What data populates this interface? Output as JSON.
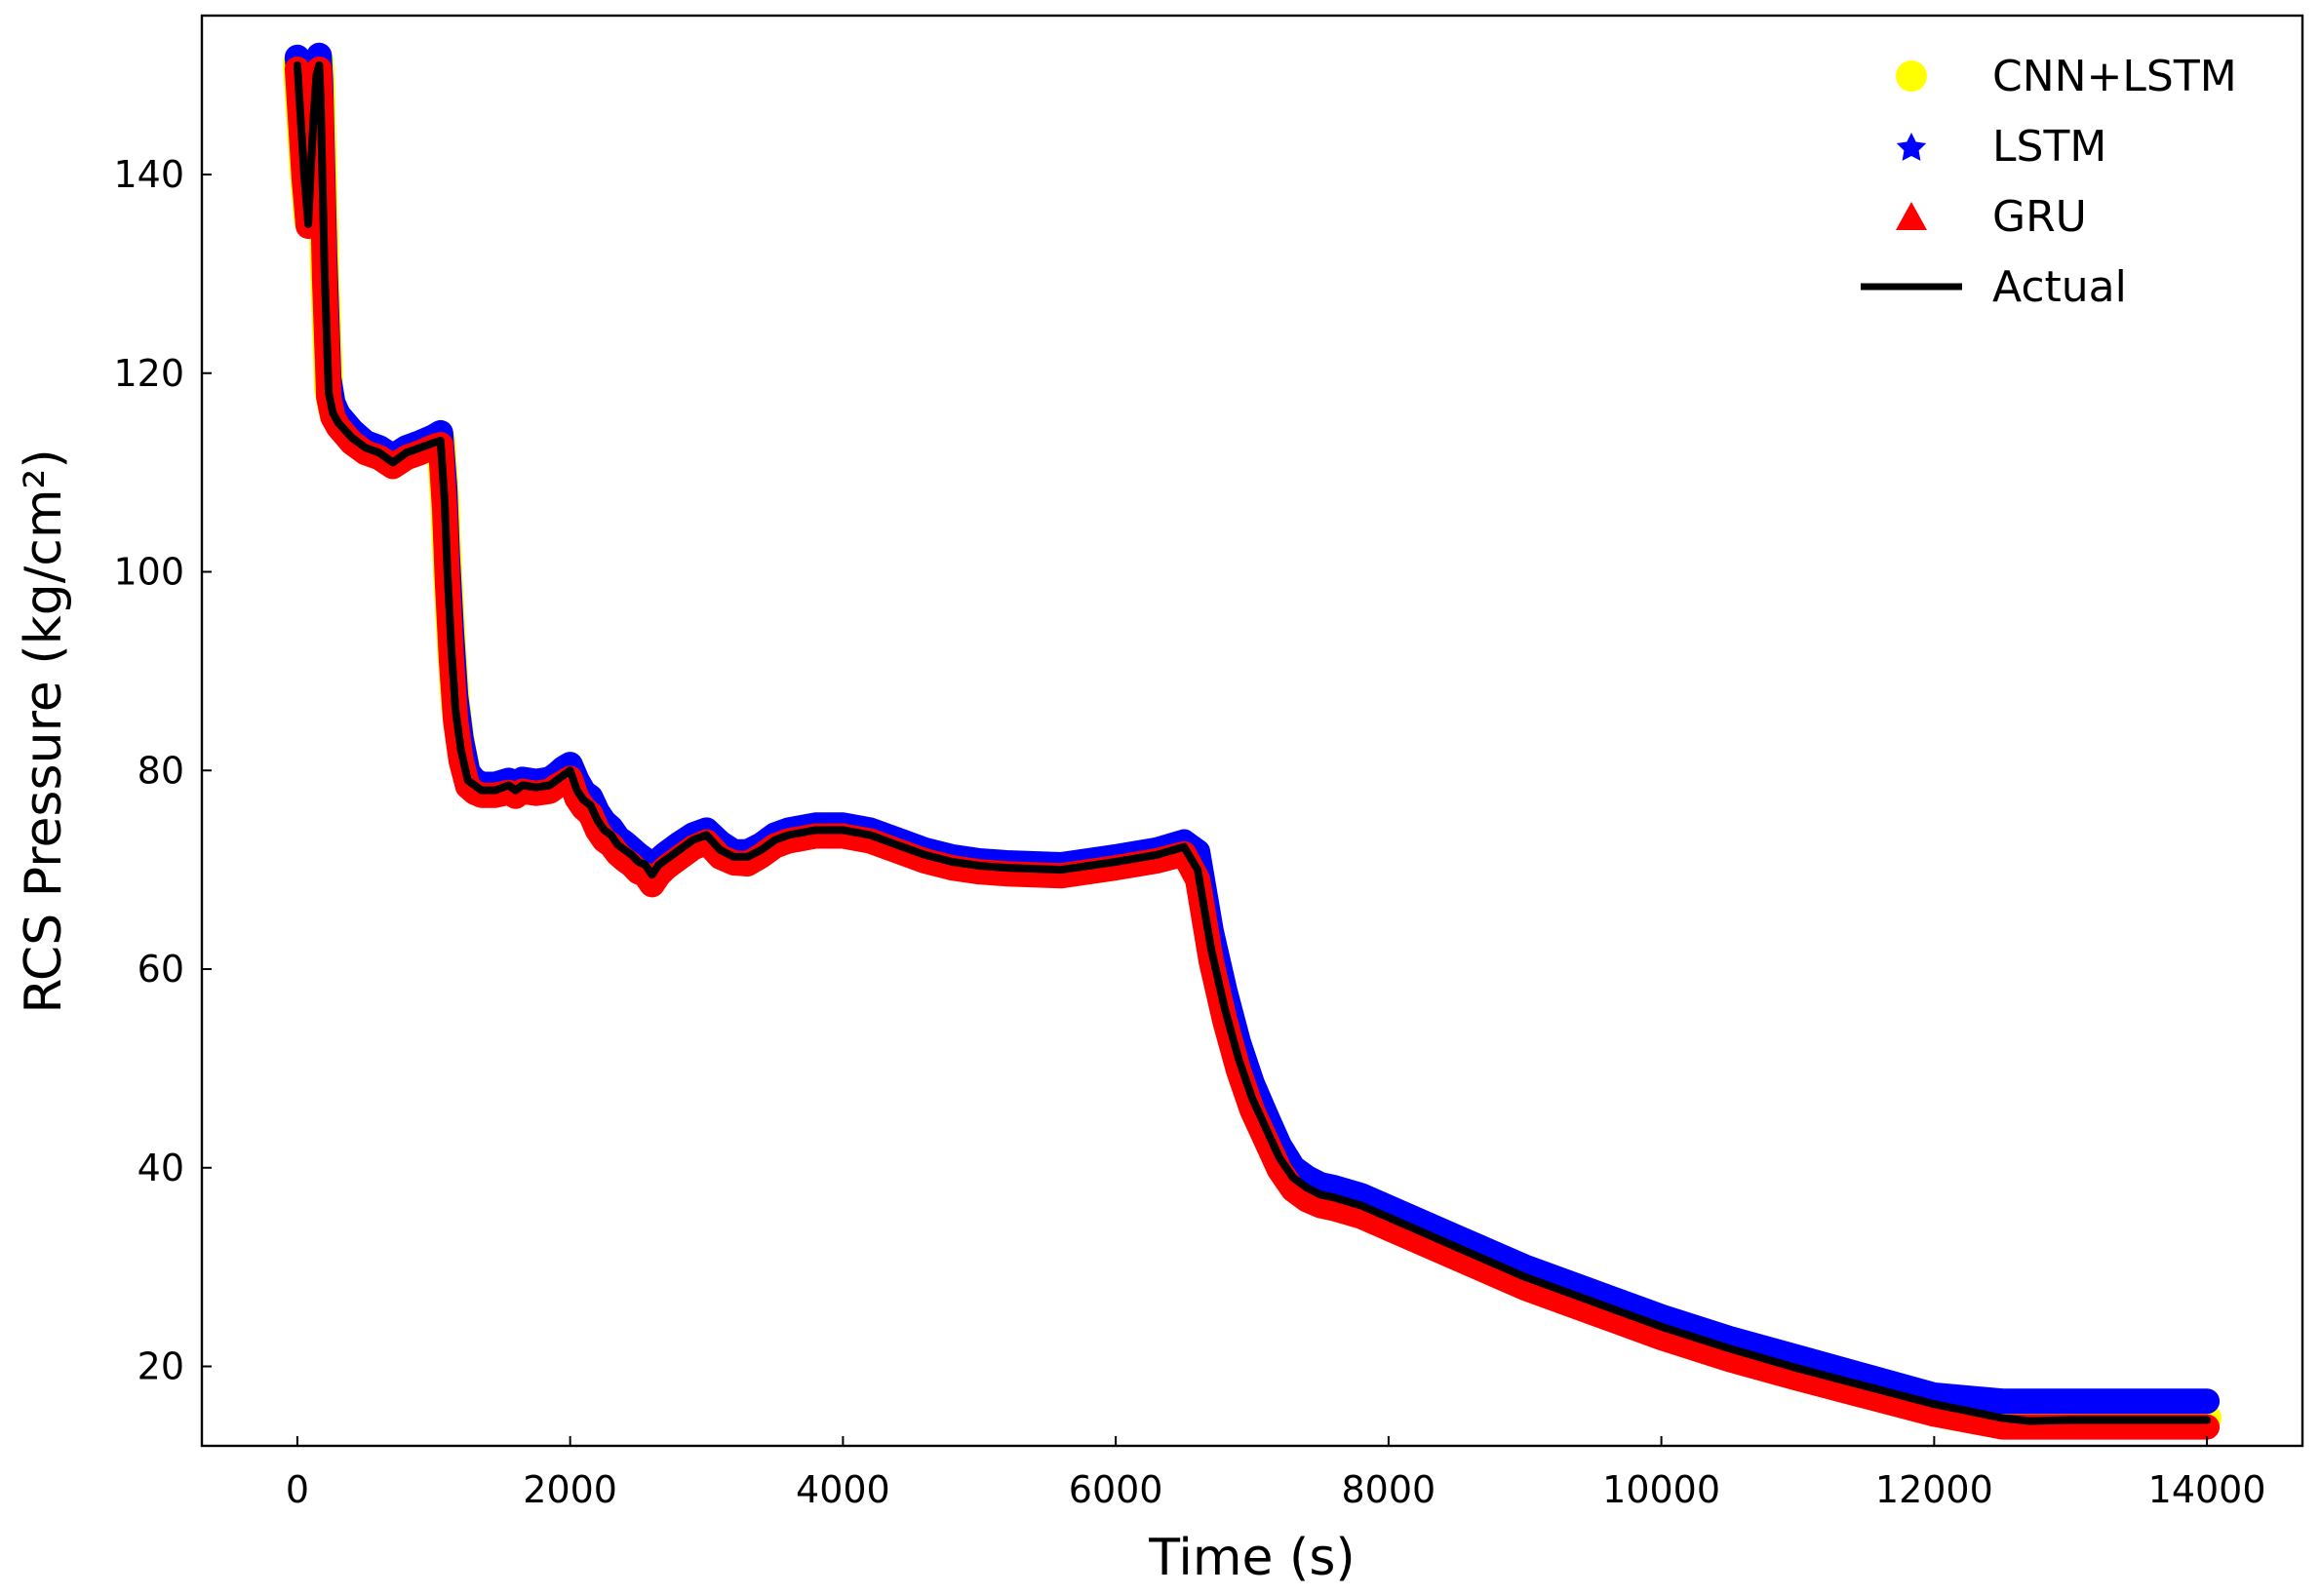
{
  "chart_data": {
    "type": "line",
    "title": "",
    "xlabel": "Time (s)",
    "ylabel": "RCS Pressure (kg/cm²)",
    "xlim": [
      -700,
      14700
    ],
    "ylim": [
      12,
      156
    ],
    "xticks": [
      0,
      2000,
      4000,
      6000,
      8000,
      10000,
      12000,
      14000
    ],
    "yticks": [
      20,
      40,
      60,
      80,
      100,
      120,
      140
    ],
    "grid": false,
    "legend_position": "top-right",
    "colors": {
      "cnn_lstm": "#ffff00",
      "lstm": "#0000ff",
      "gru": "#ff0000",
      "actual": "#000000"
    },
    "legend": [
      {
        "label": "CNN+LSTM",
        "marker": "circle",
        "color": "#ffff00"
      },
      {
        "label": "LSTM",
        "marker": "star",
        "color": "#0000ff"
      },
      {
        "label": "GRU",
        "marker": "triangle",
        "color": "#ff0000"
      },
      {
        "label": "Actual",
        "marker": "line",
        "color": "#000000"
      }
    ],
    "series": [
      {
        "name": "Actual",
        "x": [
          0,
          50,
          80,
          100,
          120,
          140,
          160,
          170,
          200,
          230,
          260,
          300,
          400,
          500,
          600,
          700,
          800,
          900,
          1000,
          1050,
          1080,
          1100,
          1130,
          1160,
          1200,
          1250,
          1300,
          1350,
          1450,
          1550,
          1600,
          1650,
          1750,
          1850,
          1900,
          1950,
          2000,
          2050,
          2100,
          2150,
          2200,
          2250,
          2300,
          2350,
          2400,
          2450,
          2500,
          2550,
          2600,
          2650,
          2700,
          2800,
          2900,
          3000,
          3100,
          3200,
          3300,
          3400,
          3500,
          3600,
          3800,
          4000,
          4200,
          4400,
          4600,
          4800,
          5000,
          5200,
          5600,
          6000,
          6300,
          6500,
          6600,
          6700,
          6800,
          6900,
          7000,
          7100,
          7200,
          7300,
          7400,
          7500,
          7600,
          7800,
          8000,
          8500,
          9000,
          9500,
          10000,
          10500,
          11000,
          11500,
          12000,
          12500,
          12700,
          13000,
          13500,
          14000
        ],
        "y": [
          151,
          140,
          135,
          141,
          146,
          150,
          151,
          148,
          130,
          118,
          116,
          115,
          113.5,
          112.5,
          112,
          111,
          112,
          112.5,
          113,
          113.2,
          107,
          100,
          92,
          86,
          82,
          79,
          78.5,
          78,
          78,
          78.5,
          78,
          78.5,
          78.3,
          78.5,
          79,
          79.5,
          80,
          78,
          77,
          76.5,
          75,
          74,
          73.5,
          72.5,
          72,
          71.5,
          70.8,
          70.5,
          69.5,
          70.5,
          71,
          72,
          73,
          73.5,
          72,
          71.3,
          71.3,
          72,
          73,
          73.5,
          74,
          74,
          73.5,
          72.5,
          71.5,
          70.8,
          70.4,
          70.2,
          70,
          70.8,
          71.5,
          72.3,
          70,
          62,
          56,
          51,
          47,
          44,
          41,
          39,
          38,
          37.3,
          37,
          36.2,
          35,
          32,
          29,
          26.5,
          24,
          21.8,
          19.8,
          18,
          16.2,
          14.8,
          14.5,
          14.6,
          14.6,
          14.6
        ]
      },
      {
        "name": "CNN+LSTM",
        "x": [
          0,
          50,
          80,
          100,
          120,
          140,
          160,
          170,
          200,
          230,
          260,
          300,
          400,
          500,
          600,
          700,
          800,
          900,
          1000,
          1050,
          1080,
          1100,
          1130,
          1160,
          1200,
          1250,
          1300,
          1350,
          1450,
          1550,
          1600,
          1650,
          1750,
          1850,
          1900,
          1950,
          2000,
          2050,
          2100,
          2150,
          2200,
          2250,
          2300,
          2350,
          2400,
          2450,
          2500,
          2550,
          2600,
          2650,
          2700,
          2800,
          2900,
          3000,
          3100,
          3200,
          3300,
          3400,
          3500,
          3600,
          3800,
          4000,
          4200,
          4400,
          4600,
          4800,
          5000,
          5200,
          5600,
          6000,
          6300,
          6500,
          6600,
          6700,
          6800,
          6900,
          7000,
          7100,
          7200,
          7300,
          7400,
          7500,
          7600,
          7800,
          8000,
          8500,
          9000,
          9500,
          10000,
          10500,
          11000,
          11500,
          12000,
          12500,
          12700,
          13000,
          13500,
          14000
        ],
        "y": [
          151.2,
          140.5,
          135.4,
          141.2,
          146.4,
          150.3,
          151.4,
          148.5,
          130.6,
          118.4,
          116.3,
          115.2,
          113.7,
          112.6,
          112.1,
          111.2,
          112.1,
          112.6,
          113.2,
          113.4,
          107.4,
          100.5,
          92.6,
          86.5,
          82.4,
          79.2,
          78.6,
          78.1,
          78.1,
          78.6,
          78.2,
          78.7,
          78.5,
          78.7,
          79.2,
          79.8,
          80.3,
          78.4,
          77.3,
          76.8,
          75.3,
          74.3,
          73.7,
          72.7,
          72.2,
          71.6,
          71,
          70.6,
          69.6,
          70.6,
          71.2,
          72.1,
          73.1,
          73.6,
          72.2,
          71.4,
          71.4,
          72.1,
          73.1,
          73.6,
          74.1,
          74.1,
          73.6,
          72.6,
          71.6,
          70.9,
          70.5,
          70.3,
          70.1,
          70.9,
          71.6,
          72.4,
          70.5,
          62.6,
          56.5,
          51.4,
          47.4,
          44.3,
          41.3,
          39.2,
          38.2,
          37.5,
          37.2,
          36.4,
          35.2,
          32.2,
          29.2,
          26.7,
          24.2,
          22,
          20,
          18.2,
          16.4,
          15,
          14.7,
          14.8,
          14.8,
          14.8
        ]
      },
      {
        "name": "LSTM",
        "x": [
          0,
          50,
          80,
          100,
          120,
          140,
          160,
          170,
          200,
          230,
          260,
          300,
          400,
          500,
          600,
          700,
          800,
          900,
          1000,
          1050,
          1080,
          1100,
          1130,
          1160,
          1200,
          1250,
          1300,
          1350,
          1450,
          1550,
          1600,
          1650,
          1750,
          1850,
          1900,
          1950,
          2000,
          2050,
          2100,
          2150,
          2200,
          2250,
          2300,
          2350,
          2400,
          2450,
          2500,
          2550,
          2600,
          2650,
          2700,
          2800,
          2900,
          3000,
          3100,
          3200,
          3300,
          3400,
          3500,
          3600,
          3800,
          4000,
          4200,
          4400,
          4600,
          4800,
          5000,
          5200,
          5600,
          6000,
          6300,
          6500,
          6600,
          6700,
          6800,
          6900,
          7000,
          7100,
          7200,
          7300,
          7400,
          7500,
          7600,
          7800,
          8000,
          8500,
          9000,
          9500,
          10000,
          10500,
          11000,
          11500,
          12000,
          12500,
          12700,
          13000,
          13500,
          14000
        ],
        "y": [
          151.8,
          141.5,
          136,
          142,
          147,
          151,
          152,
          149.5,
          132,
          119.5,
          117,
          115.8,
          114.2,
          113,
          112.5,
          111.6,
          112.5,
          113,
          113.6,
          114,
          108.5,
          101.5,
          93.8,
          87.5,
          83.2,
          79.8,
          79,
          78.6,
          78.6,
          79,
          78.6,
          79.1,
          78.9,
          79.1,
          79.6,
          80.2,
          80.6,
          79,
          77.8,
          77.3,
          75.8,
          74.8,
          74.2,
          73.2,
          72.7,
          72.1,
          71.5,
          71,
          70.1,
          71,
          71.6,
          72.6,
          73.5,
          74,
          72.7,
          71.8,
          71.8,
          72.5,
          73.5,
          74,
          74.5,
          74.5,
          74,
          73,
          72,
          71.3,
          70.9,
          70.7,
          70.5,
          71.3,
          72,
          72.8,
          71.8,
          63.8,
          57.8,
          52.6,
          48.5,
          45.3,
          42.2,
          40,
          39,
          38.3,
          38,
          37.2,
          36,
          33,
          30,
          27.5,
          25,
          22.8,
          20.9,
          19,
          17.1,
          16.5,
          16.5,
          16.5,
          16.5,
          16.5
        ]
      },
      {
        "name": "GRU",
        "x": [
          0,
          50,
          80,
          100,
          120,
          140,
          160,
          170,
          200,
          230,
          260,
          300,
          400,
          500,
          600,
          700,
          800,
          900,
          1000,
          1050,
          1080,
          1100,
          1130,
          1160,
          1200,
          1250,
          1300,
          1350,
          1450,
          1550,
          1600,
          1650,
          1750,
          1850,
          1900,
          1950,
          2000,
          2050,
          2100,
          2150,
          2200,
          2250,
          2300,
          2350,
          2400,
          2450,
          2500,
          2550,
          2600,
          2650,
          2700,
          2800,
          2900,
          3000,
          3100,
          3200,
          3300,
          3400,
          3500,
          3600,
          3800,
          4000,
          4200,
          4400,
          4600,
          4800,
          5000,
          5200,
          5600,
          6000,
          6300,
          6500,
          6600,
          6700,
          6800,
          6900,
          7000,
          7100,
          7200,
          7300,
          7400,
          7500,
          7600,
          7800,
          8000,
          8500,
          9000,
          9500,
          10000,
          10500,
          11000,
          11500,
          12000,
          12500,
          12700,
          13000,
          13500,
          14000
        ],
        "y": [
          150.6,
          139.6,
          134.8,
          140.6,
          145.8,
          149.6,
          150.6,
          147.4,
          129.4,
          117.6,
          115.6,
          114.6,
          113,
          112,
          111.5,
          110.6,
          111.5,
          112,
          112.6,
          112.8,
          106.2,
          99,
          91,
          85,
          81,
          78.4,
          77.8,
          77.5,
          77.5,
          77.8,
          77.4,
          77.9,
          77.7,
          77.9,
          78.4,
          78.8,
          79.2,
          77.2,
          76.2,
          75.6,
          74,
          73,
          72.5,
          71.6,
          71,
          70.5,
          69.8,
          69.5,
          68.5,
          69.5,
          70.2,
          71.2,
          72.2,
          72.8,
          71.3,
          70.7,
          70.6,
          71.4,
          72.4,
          72.9,
          73.4,
          73.4,
          72.9,
          71.9,
          70.9,
          70.2,
          69.8,
          69.6,
          69.4,
          70.2,
          70.9,
          71.6,
          69,
          60.8,
          54.8,
          49.8,
          45.8,
          42.8,
          39.8,
          37.8,
          36.8,
          36.2,
          35.9,
          35.1,
          33.9,
          30.9,
          27.9,
          25.4,
          22.9,
          20.7,
          18.8,
          17,
          15.2,
          13.9,
          13.9,
          13.9,
          13.9,
          13.9
        ]
      }
    ]
  }
}
